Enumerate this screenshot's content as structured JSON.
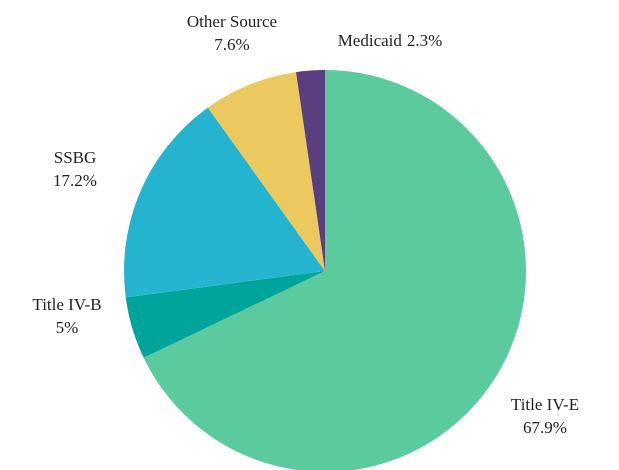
{
  "chart_data": {
    "type": "pie",
    "categories": [
      "Title IV-E",
      "Title IV-B",
      "SSBG",
      "Other Source",
      "Medicaid"
    ],
    "values": [
      67.9,
      5,
      17.2,
      7.6,
      2.3
    ],
    "value_labels": [
      "67.9%",
      "5%",
      "17.2%",
      "7.6%",
      "2.3%"
    ],
    "colors": [
      "#5bcb9e",
      "#00a49a",
      "#25b4cf",
      "#ecc95f",
      "#5a3f7f"
    ]
  }
}
